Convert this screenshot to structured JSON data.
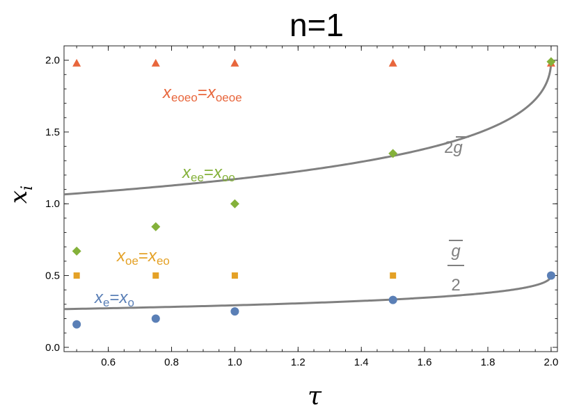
{
  "chart_data": {
    "type": "scatter",
    "title": "n=1",
    "xlabel": "τ",
    "ylabel": "x",
    "ylabel_sub": "i",
    "xlim": [
      0.46,
      2.02
    ],
    "ylim": [
      -0.03,
      2.1
    ],
    "xticks": [
      0.6,
      0.8,
      1.0,
      1.2,
      1.4,
      1.6,
      1.8,
      2.0
    ],
    "xtick_labels": [
      "0.6",
      "0.8",
      "1.0",
      "1.2",
      "1.4",
      "1.6",
      "1.8",
      "2.0"
    ],
    "yticks": [
      0.0,
      0.5,
      1.0,
      1.5,
      2.0
    ],
    "ytick_labels": [
      "0.0",
      "0.5",
      "1.0",
      "1.5",
      "2.0"
    ],
    "grid": false,
    "series": [
      {
        "key": "eoeo",
        "color": "#e8663c",
        "marker": "triangle",
        "x": [
          0.5,
          0.75,
          1.0,
          1.5,
          2.0
        ],
        "y": [
          1.98,
          1.98,
          1.98,
          1.98,
          1.98
        ]
      },
      {
        "key": "ee",
        "color": "#84b13a",
        "marker": "diamond",
        "x": [
          0.5,
          0.75,
          1.0,
          1.5,
          2.0
        ],
        "y": [
          0.67,
          0.84,
          1.0,
          1.35,
          1.99
        ]
      },
      {
        "key": "oe",
        "color": "#e4a126",
        "marker": "square",
        "x": [
          0.5,
          0.75,
          1.0,
          1.5,
          2.0
        ],
        "y": [
          0.5,
          0.5,
          0.5,
          0.5,
          0.5
        ]
      },
      {
        "key": "e",
        "color": "#5a7fb6",
        "marker": "circle",
        "x": [
          0.5,
          0.75,
          1.0,
          1.5,
          2.0
        ],
        "y": [
          0.16,
          0.2,
          0.25,
          0.33,
          0.5
        ]
      }
    ],
    "curves": [
      {
        "key": "2g",
        "color": "#808080",
        "scale": 2
      },
      {
        "key": "g2",
        "color": "#808080",
        "scale": 0.5
      }
    ],
    "annotations": {
      "eoeo": {
        "color": "#e8663c",
        "parts": [
          {
            "t": "x",
            "sub": "eoeo"
          },
          {
            "t": "=",
            "sub": ""
          },
          {
            "t": "x",
            "sub": "oeoe"
          }
        ]
      },
      "ee": {
        "color": "#84b13a",
        "parts": [
          {
            "t": "x",
            "sub": "ee"
          },
          {
            "t": "=",
            "sub": ""
          },
          {
            "t": "x",
            "sub": "oo"
          }
        ]
      },
      "oe": {
        "color": "#e4a126",
        "parts": [
          {
            "t": "x",
            "sub": "oe"
          },
          {
            "t": "=",
            "sub": ""
          },
          {
            "t": "x",
            "sub": "eo"
          }
        ]
      },
      "e": {
        "color": "#5a7fb6",
        "parts": [
          {
            "t": "x",
            "sub": "e"
          },
          {
            "t": "=",
            "sub": ""
          },
          {
            "t": "x",
            "sub": "o"
          }
        ]
      },
      "twog": {
        "color": "#808080",
        "prefix": "2",
        "symbol": "g"
      },
      "ghalf": {
        "color": "#808080",
        "numerator": "g",
        "denominator": "2"
      }
    }
  }
}
